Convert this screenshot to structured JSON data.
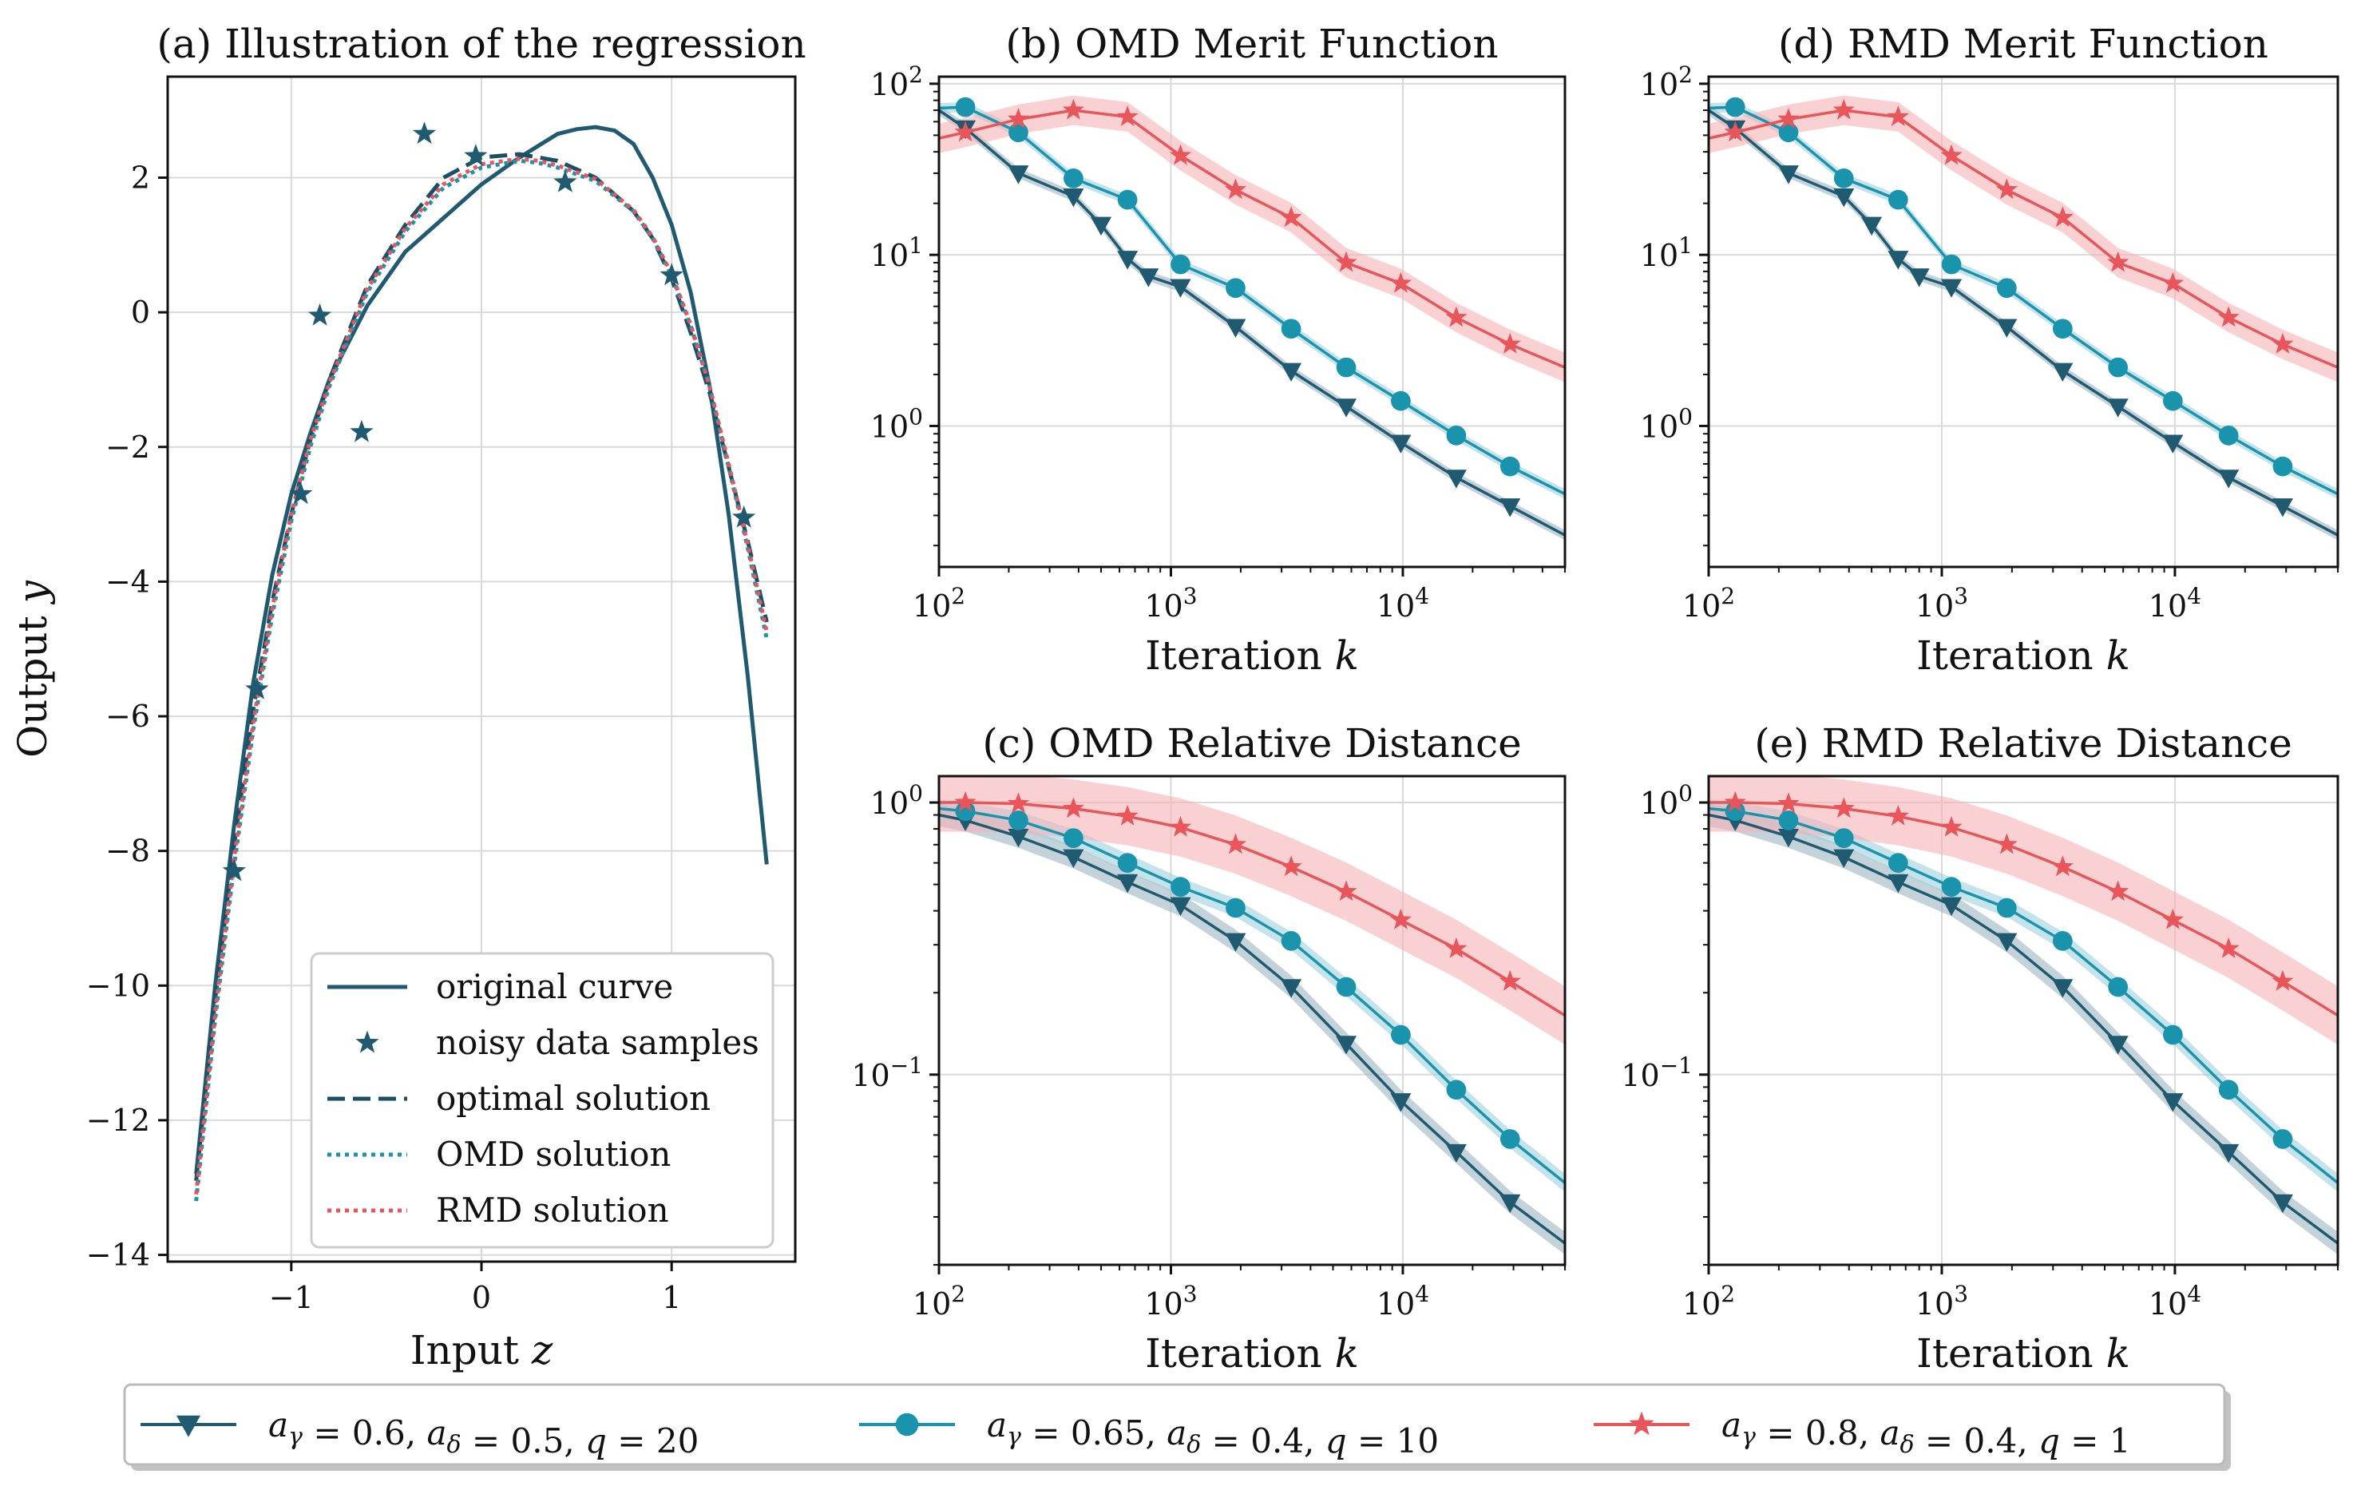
{
  "colors": {
    "dark": "#1f5a70",
    "teal": "#1a93ad",
    "red": "#e8555a",
    "red_band": "#f6b3b6",
    "teal_band": "#9fd1de",
    "dark_band": "#9db6c2"
  },
  "bottom_legend": {
    "entries": [
      {
        "label": "a_γ = 0.6, a_δ = 0.5, q = 20",
        "series": "dark",
        "marker": "triangle-down-icon"
      },
      {
        "label": "a_γ = 0.65, a_δ = 0.4, q = 10",
        "series": "teal",
        "marker": "circle-icon"
      },
      {
        "label": "a_γ = 0.8, a_δ = 0.4, q = 1",
        "series": "red",
        "marker": "star-icon"
      }
    ]
  },
  "chart_data": [
    {
      "id": "a",
      "type": "line",
      "title": "(a) Illustration of the regression",
      "xlabel": "Input z",
      "ylabel": "Output y",
      "xlim": [
        -1.65,
        1.65
      ],
      "ylim": [
        -14.1,
        3.5
      ],
      "xticks": [
        -1,
        0,
        1
      ],
      "xtick_labels": [
        "−1",
        "0",
        "1"
      ],
      "yticks": [
        2,
        0,
        -2,
        -4,
        -6,
        -8,
        -10,
        -12,
        -14
      ],
      "ytick_labels": [
        "2",
        "0",
        "−2",
        "−4",
        "−6",
        "−8",
        "−10",
        "−12",
        "−14"
      ],
      "legend_position": "lower-right",
      "legend": [
        {
          "label": "original curve",
          "style": "solid"
        },
        {
          "label": "noisy data samples",
          "style": "star"
        },
        {
          "label": "optimal solution",
          "style": "dashed"
        },
        {
          "label": "OMD solution",
          "style": "dotted-teal"
        },
        {
          "label": "RMD solution",
          "style": "dotted-red"
        }
      ],
      "series": [
        {
          "name": "original curve",
          "x": [
            -1.5,
            -1.4,
            -1.3,
            -1.2,
            -1.1,
            -1.0,
            -0.9,
            -0.8,
            -0.6,
            -0.4,
            -0.2,
            0.0,
            0.2,
            0.4,
            0.5,
            0.6,
            0.7,
            0.8,
            0.9,
            1.0,
            1.1,
            1.2,
            1.3,
            1.4,
            1.5
          ],
          "y": [
            -12.8,
            -10.0,
            -7.6,
            -5.5,
            -3.9,
            -2.7,
            -1.8,
            -1.0,
            0.1,
            0.9,
            1.4,
            1.9,
            2.3,
            2.65,
            2.72,
            2.75,
            2.7,
            2.5,
            2.0,
            1.3,
            0.3,
            -1.1,
            -3.0,
            -5.4,
            -8.2
          ]
        },
        {
          "name": "optimal solution",
          "x": [
            -1.5,
            -1.4,
            -1.3,
            -1.2,
            -1.1,
            -1.0,
            -0.9,
            -0.8,
            -0.7,
            -0.6,
            -0.4,
            -0.2,
            0.0,
            0.2,
            0.3,
            0.4,
            0.6,
            0.8,
            0.9,
            1.0,
            1.1,
            1.2,
            1.3,
            1.4,
            1.5
          ],
          "y": [
            -12.9,
            -10.2,
            -7.9,
            -5.9,
            -4.3,
            -3.0,
            -1.9,
            -1.0,
            -0.3,
            0.4,
            1.3,
            2.0,
            2.3,
            2.35,
            2.3,
            2.25,
            2.0,
            1.5,
            1.1,
            0.5,
            -0.3,
            -1.2,
            -2.3,
            -3.4,
            -4.6
          ]
        },
        {
          "name": "OMD solution",
          "x": [
            -1.5,
            -1.4,
            -1.3,
            -1.2,
            -1.1,
            -1.0,
            -0.9,
            -0.8,
            -0.7,
            -0.6,
            -0.4,
            -0.2,
            0.0,
            0.2,
            0.3,
            0.4,
            0.6,
            0.8,
            0.9,
            1.0,
            1.1,
            1.2,
            1.3,
            1.4,
            1.5
          ],
          "y": [
            -13.2,
            -10.5,
            -8.2,
            -6.2,
            -4.5,
            -3.1,
            -2.0,
            -1.1,
            -0.4,
            0.3,
            1.2,
            1.85,
            2.15,
            2.25,
            2.22,
            2.15,
            1.95,
            1.5,
            1.1,
            0.55,
            -0.2,
            -1.1,
            -2.3,
            -3.5,
            -4.85
          ]
        },
        {
          "name": "RMD solution",
          "x": [
            -1.5,
            -1.4,
            -1.3,
            -1.2,
            -1.1,
            -1.0,
            -0.9,
            -0.8,
            -0.7,
            -0.6,
            -0.4,
            -0.2,
            0.0,
            0.2,
            0.3,
            0.4,
            0.6,
            0.8,
            0.9,
            1.0,
            1.1,
            1.2,
            1.3,
            1.4,
            1.5
          ],
          "y": [
            -13.1,
            -10.4,
            -8.1,
            -6.1,
            -4.4,
            -3.0,
            -1.9,
            -1.05,
            -0.35,
            0.35,
            1.25,
            1.9,
            2.2,
            2.28,
            2.25,
            2.18,
            1.98,
            1.52,
            1.12,
            0.57,
            -0.18,
            -1.1,
            -2.25,
            -3.45,
            -4.75
          ]
        }
      ],
      "samples": {
        "x": [
          -1.3,
          -1.18,
          -0.95,
          -0.85,
          -0.63,
          -0.3,
          -0.03,
          0.44,
          1.0,
          1.38
        ],
        "y": [
          -8.3,
          -5.6,
          -2.7,
          -0.05,
          -1.78,
          2.65,
          2.32,
          1.93,
          0.55,
          -3.05
        ]
      }
    },
    {
      "id": "b",
      "type": "line",
      "title": "(b) OMD Merit Function",
      "xlabel": "Iteration k",
      "ylabel": "",
      "xscale": "log",
      "yscale": "log",
      "xlim": [
        100,
        50000
      ],
      "ylim": [
        0.15,
        110
      ],
      "xticks": [
        100,
        1000,
        10000
      ],
      "xtick_labels": [
        "10^2",
        "10^3",
        "10^4"
      ],
      "yticks": [
        1,
        10,
        100
      ],
      "ytick_labels": [
        "10^0",
        "10^1",
        "10^2"
      ],
      "series": [
        {
          "name": "a_γ = 0.6, a_δ = 0.5, q = 20",
          "color": "dark",
          "x": [
            100,
            130,
            220,
            380,
            500,
            650,
            800,
            1100,
            1900,
            3300,
            5700,
            9800,
            17000,
            29000,
            50000
          ],
          "y": [
            70,
            55,
            30,
            22,
            15,
            9.5,
            7.5,
            6.5,
            3.8,
            2.1,
            1.3,
            0.8,
            0.5,
            0.34,
            0.23
          ],
          "band": 0.07
        },
        {
          "name": "a_γ = 0.65, a_δ = 0.4, q = 10",
          "color": "teal",
          "x": [
            100,
            130,
            220,
            380,
            650,
            1100,
            1900,
            3300,
            5700,
            9800,
            17000,
            29000,
            50000
          ],
          "y": [
            72,
            73,
            52,
            28,
            21,
            8.8,
            6.4,
            3.7,
            2.2,
            1.4,
            0.88,
            0.58,
            0.4
          ],
          "band": 0.07
        },
        {
          "name": "a_γ = 0.8, a_δ = 0.4, q = 1",
          "color": "red",
          "x": [
            100,
            130,
            220,
            380,
            650,
            1100,
            1900,
            3300,
            5700,
            9800,
            17000,
            29000,
            50000
          ],
          "y": [
            48,
            52,
            62,
            70,
            64,
            38,
            24,
            16.5,
            9,
            6.8,
            4.3,
            3.0,
            2.2
          ],
          "band": 0.22
        }
      ]
    },
    {
      "id": "c",
      "type": "line",
      "title": "(c) OMD Relative Distance",
      "xlabel": "Iteration k",
      "ylabel": "",
      "xscale": "log",
      "yscale": "log",
      "xlim": [
        100,
        50000
      ],
      "ylim": [
        0.02,
        1.25
      ],
      "xticks": [
        100,
        1000,
        10000
      ],
      "xtick_labels": [
        "10^2",
        "10^3",
        "10^4"
      ],
      "yticks": [
        0.1,
        1
      ],
      "ytick_labels": [
        "10^−1",
        "10^0"
      ],
      "series": [
        {
          "name": "a_γ = 0.6, a_δ = 0.5, q = 20",
          "color": "dark",
          "x": [
            100,
            130,
            220,
            380,
            650,
            1100,
            1900,
            3300,
            5700,
            9800,
            17000,
            29000,
            50000
          ],
          "y": [
            0.9,
            0.86,
            0.75,
            0.63,
            0.51,
            0.42,
            0.31,
            0.21,
            0.13,
            0.08,
            0.052,
            0.034,
            0.024
          ],
          "band": 0.1
        },
        {
          "name": "a_γ = 0.65, a_δ = 0.4, q = 10",
          "color": "teal",
          "x": [
            100,
            130,
            220,
            380,
            650,
            1100,
            1900,
            3300,
            5700,
            9800,
            17000,
            29000,
            50000
          ],
          "y": [
            0.95,
            0.93,
            0.86,
            0.74,
            0.6,
            0.49,
            0.41,
            0.31,
            0.21,
            0.14,
            0.088,
            0.058,
            0.04
          ],
          "band": 0.08
        },
        {
          "name": "a_γ = 0.8, a_δ = 0.4, q = 1",
          "color": "red",
          "x": [
            100,
            130,
            220,
            380,
            650,
            1100,
            1900,
            3300,
            5700,
            9800,
            17000,
            29000,
            50000
          ],
          "y": [
            1.0,
            1.0,
            0.99,
            0.95,
            0.89,
            0.81,
            0.7,
            0.58,
            0.47,
            0.37,
            0.29,
            0.22,
            0.165
          ],
          "band": 0.28
        }
      ]
    },
    {
      "id": "d",
      "type": "line",
      "title": "(d) RMD Merit Function",
      "xlabel": "Iteration k",
      "ylabel": "",
      "xscale": "log",
      "yscale": "log",
      "xlim": [
        100,
        50000
      ],
      "ylim": [
        0.15,
        110
      ],
      "xticks": [
        100,
        1000,
        10000
      ],
      "xtick_labels": [
        "10^2",
        "10^3",
        "10^4"
      ],
      "yticks": [
        1,
        10,
        100
      ],
      "ytick_labels": [
        "10^0",
        "10^1",
        "10^2"
      ],
      "series": [
        {
          "name": "a_γ = 0.6, a_δ = 0.5, q = 20",
          "color": "dark",
          "x": [
            100,
            130,
            220,
            380,
            500,
            650,
            800,
            1100,
            1900,
            3300,
            5700,
            9800,
            17000,
            29000,
            50000
          ],
          "y": [
            70,
            55,
            30,
            22,
            15,
            9.5,
            7.5,
            6.5,
            3.8,
            2.1,
            1.3,
            0.8,
            0.5,
            0.34,
            0.23
          ],
          "band": 0.07
        },
        {
          "name": "a_γ = 0.65, a_δ = 0.4, q = 10",
          "color": "teal",
          "x": [
            100,
            130,
            220,
            380,
            650,
            1100,
            1900,
            3300,
            5700,
            9800,
            17000,
            29000,
            50000
          ],
          "y": [
            72,
            73,
            52,
            28,
            21,
            8.8,
            6.4,
            3.7,
            2.2,
            1.4,
            0.88,
            0.58,
            0.4
          ],
          "band": 0.07
        },
        {
          "name": "a_γ = 0.8, a_δ = 0.4, q = 1",
          "color": "red",
          "x": [
            100,
            130,
            220,
            380,
            650,
            1100,
            1900,
            3300,
            5700,
            9800,
            17000,
            29000,
            50000
          ],
          "y": [
            48,
            52,
            62,
            70,
            64,
            38,
            24,
            16.5,
            9,
            6.8,
            4.3,
            3.0,
            2.2
          ],
          "band": 0.22
        }
      ]
    },
    {
      "id": "e",
      "type": "line",
      "title": "(e) RMD Relative Distance",
      "xlabel": "Iteration k",
      "ylabel": "",
      "xscale": "log",
      "yscale": "log",
      "xlim": [
        100,
        50000
      ],
      "ylim": [
        0.02,
        1.25
      ],
      "xticks": [
        100,
        1000,
        10000
      ],
      "xtick_labels": [
        "10^2",
        "10^3",
        "10^4"
      ],
      "yticks": [
        0.1,
        1
      ],
      "ytick_labels": [
        "10^−1",
        "10^0"
      ],
      "series": [
        {
          "name": "a_γ = 0.6, a_δ = 0.5, q = 20",
          "color": "dark",
          "x": [
            100,
            130,
            220,
            380,
            650,
            1100,
            1900,
            3300,
            5700,
            9800,
            17000,
            29000,
            50000
          ],
          "y": [
            0.9,
            0.86,
            0.75,
            0.63,
            0.51,
            0.42,
            0.31,
            0.21,
            0.13,
            0.08,
            0.052,
            0.034,
            0.024
          ],
          "band": 0.1
        },
        {
          "name": "a_γ = 0.65, a_δ = 0.4, q = 10",
          "color": "teal",
          "x": [
            100,
            130,
            220,
            380,
            650,
            1100,
            1900,
            3300,
            5700,
            9800,
            17000,
            29000,
            50000
          ],
          "y": [
            0.95,
            0.93,
            0.86,
            0.74,
            0.6,
            0.49,
            0.41,
            0.31,
            0.21,
            0.14,
            0.088,
            0.058,
            0.04
          ],
          "band": 0.08
        },
        {
          "name": "a_γ = 0.8, a_δ = 0.4, q = 1",
          "color": "red",
          "x": [
            100,
            130,
            220,
            380,
            650,
            1100,
            1900,
            3300,
            5700,
            9800,
            17000,
            29000,
            50000
          ],
          "y": [
            1.0,
            1.0,
            0.99,
            0.95,
            0.89,
            0.81,
            0.7,
            0.58,
            0.47,
            0.37,
            0.29,
            0.22,
            0.165
          ],
          "band": 0.28
        }
      ]
    }
  ]
}
